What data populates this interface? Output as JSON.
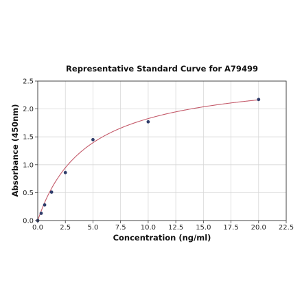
{
  "chart_data": {
    "type": "scatter",
    "title": "Representative Standard Curve for A79499",
    "xlabel": "Concentration (ng/ml)",
    "ylabel": "Absorbance (450nm)",
    "xlim": [
      0,
      22.5
    ],
    "ylim": [
      0,
      2.5
    ],
    "x_ticks": [
      "0.0",
      "2.5",
      "5.0",
      "7.5",
      "10.0",
      "12.5",
      "15.0",
      "17.5",
      "20.0",
      "22.5"
    ],
    "y_ticks": [
      "0.0",
      "0.5",
      "1.0",
      "1.5",
      "2.0",
      "2.5"
    ],
    "grid": true,
    "series": [
      {
        "kind": "points",
        "x": [
          0,
          0.312,
          0.625,
          1.25,
          2.5,
          5,
          10,
          20
        ],
        "y": [
          0.0,
          0.13,
          0.28,
          0.51,
          0.86,
          1.45,
          1.77,
          2.17
        ]
      },
      {
        "kind": "fitted-curve",
        "model": "hyperbolic",
        "params": {
          "bmax": 2.65,
          "kd": 4.5
        }
      }
    ],
    "colors": {
      "points": "#2f3d6b",
      "curve": "#c45a6a",
      "grid": "#d6d6d6",
      "axis": "#333333"
    }
  }
}
